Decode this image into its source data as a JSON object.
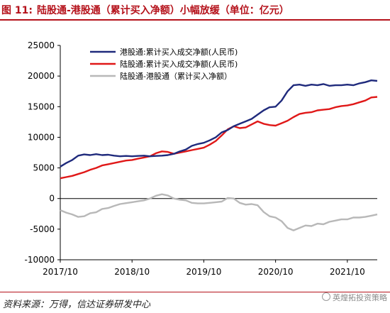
{
  "header": {
    "figure_tag": "图 11:",
    "title": "陆股通-港股通（累计买入净额）小幅放缓（单位：亿元）"
  },
  "footer": {
    "source": "资料来源：万得，信达证券研发中心",
    "watermark": "英煌拓投资策略"
  },
  "chart_data": {
    "type": "line",
    "ylim": [
      -10000,
      25000
    ],
    "yticks": [
      25000,
      20000,
      15000,
      10000,
      5000,
      0,
      -5000,
      -10000
    ],
    "xlim": [
      "2017-10",
      "2022-03"
    ],
    "xticks": [
      "2017/10",
      "2018/10",
      "2019/10",
      "2020/10",
      "2021/10"
    ],
    "grid": false,
    "legend_position": "top-left",
    "colors": {
      "southbound": "#1f2a7c",
      "northbound": "#e01818",
      "net": "#b8b8b8"
    },
    "series": [
      {
        "name": "港股通:累计买入成交净额(人民币)",
        "key": "southbound",
        "points": [
          [
            "2017-10",
            5200
          ],
          [
            "2017-11",
            5800
          ],
          [
            "2017-12",
            6300
          ],
          [
            "2018-01",
            7000
          ],
          [
            "2018-02",
            7200
          ],
          [
            "2018-03",
            7100
          ],
          [
            "2018-04",
            7250
          ],
          [
            "2018-05",
            7100
          ],
          [
            "2018-06",
            7150
          ],
          [
            "2018-07",
            7000
          ],
          [
            "2018-08",
            6900
          ],
          [
            "2018-09",
            6950
          ],
          [
            "2018-10",
            6900
          ],
          [
            "2018-11",
            6950
          ],
          [
            "2018-12",
            7000
          ],
          [
            "2019-01",
            6900
          ],
          [
            "2019-02",
            6950
          ],
          [
            "2019-03",
            7000
          ],
          [
            "2019-04",
            7100
          ],
          [
            "2019-05",
            7300
          ],
          [
            "2019-06",
            7700
          ],
          [
            "2019-07",
            8000
          ],
          [
            "2019-08",
            8600
          ],
          [
            "2019-09",
            8900
          ],
          [
            "2019-10",
            9100
          ],
          [
            "2019-11",
            9500
          ],
          [
            "2019-12",
            10000
          ],
          [
            "2020-01",
            10800
          ],
          [
            "2020-02",
            11200
          ],
          [
            "2020-03",
            11800
          ],
          [
            "2020-04",
            12200
          ],
          [
            "2020-05",
            12600
          ],
          [
            "2020-06",
            13000
          ],
          [
            "2020-07",
            13700
          ],
          [
            "2020-08",
            14400
          ],
          [
            "2020-09",
            14900
          ],
          [
            "2020-10",
            15000
          ],
          [
            "2020-11",
            16000
          ],
          [
            "2020-12",
            17500
          ],
          [
            "2021-01",
            18500
          ],
          [
            "2021-02",
            18600
          ],
          [
            "2021-03",
            18400
          ],
          [
            "2021-04",
            18600
          ],
          [
            "2021-05",
            18500
          ],
          [
            "2021-06",
            18700
          ],
          [
            "2021-07",
            18400
          ],
          [
            "2021-08",
            18500
          ],
          [
            "2021-09",
            18500
          ],
          [
            "2021-10",
            18600
          ],
          [
            "2021-11",
            18500
          ],
          [
            "2021-12",
            18800
          ],
          [
            "2022-01",
            19000
          ],
          [
            "2022-02",
            19300
          ],
          [
            "2022-03",
            19200
          ]
        ]
      },
      {
        "name": "陆股通:累计买入成交净额(人民币)",
        "key": "northbound",
        "points": [
          [
            "2017-10",
            3300
          ],
          [
            "2017-11",
            3500
          ],
          [
            "2017-12",
            3700
          ],
          [
            "2018-01",
            4000
          ],
          [
            "2018-02",
            4300
          ],
          [
            "2018-03",
            4700
          ],
          [
            "2018-04",
            5000
          ],
          [
            "2018-05",
            5400
          ],
          [
            "2018-06",
            5600
          ],
          [
            "2018-07",
            5800
          ],
          [
            "2018-08",
            6000
          ],
          [
            "2018-09",
            6200
          ],
          [
            "2018-10",
            6300
          ],
          [
            "2018-11",
            6500
          ],
          [
            "2018-12",
            6700
          ],
          [
            "2019-01",
            6900
          ],
          [
            "2019-02",
            7400
          ],
          [
            "2019-03",
            7700
          ],
          [
            "2019-04",
            7600
          ],
          [
            "2019-05",
            7300
          ],
          [
            "2019-06",
            7500
          ],
          [
            "2019-07",
            7700
          ],
          [
            "2019-08",
            7900
          ],
          [
            "2019-09",
            8100
          ],
          [
            "2019-10",
            8300
          ],
          [
            "2019-11",
            8800
          ],
          [
            "2019-12",
            9400
          ],
          [
            "2020-01",
            10300
          ],
          [
            "2020-02",
            11300
          ],
          [
            "2020-03",
            11800
          ],
          [
            "2020-04",
            11500
          ],
          [
            "2020-05",
            11600
          ],
          [
            "2020-06",
            12100
          ],
          [
            "2020-07",
            12600
          ],
          [
            "2020-08",
            12200
          ],
          [
            "2020-09",
            12000
          ],
          [
            "2020-10",
            11900
          ],
          [
            "2020-11",
            12300
          ],
          [
            "2020-12",
            12700
          ],
          [
            "2021-01",
            13300
          ],
          [
            "2021-02",
            13800
          ],
          [
            "2021-03",
            14000
          ],
          [
            "2021-04",
            14100
          ],
          [
            "2021-05",
            14400
          ],
          [
            "2021-06",
            14500
          ],
          [
            "2021-07",
            14600
          ],
          [
            "2021-08",
            14900
          ],
          [
            "2021-09",
            15100
          ],
          [
            "2021-10",
            15200
          ],
          [
            "2021-11",
            15400
          ],
          [
            "2021-12",
            15700
          ],
          [
            "2022-01",
            16000
          ],
          [
            "2022-02",
            16500
          ],
          [
            "2022-03",
            16600
          ]
        ]
      },
      {
        "name": "陆股通-港股通（累计买入净额）",
        "key": "net",
        "points": [
          [
            "2017-10",
            -1900
          ],
          [
            "2017-11",
            -2300
          ],
          [
            "2017-12",
            -2600
          ],
          [
            "2018-01",
            -3000
          ],
          [
            "2018-02",
            -2900
          ],
          [
            "2018-03",
            -2400
          ],
          [
            "2018-04",
            -2250
          ],
          [
            "2018-05",
            -1700
          ],
          [
            "2018-06",
            -1550
          ],
          [
            "2018-07",
            -1200
          ],
          [
            "2018-08",
            -900
          ],
          [
            "2018-09",
            -750
          ],
          [
            "2018-10",
            -600
          ],
          [
            "2018-11",
            -450
          ],
          [
            "2018-12",
            -300
          ],
          [
            "2019-01",
            0
          ],
          [
            "2019-02",
            450
          ],
          [
            "2019-03",
            700
          ],
          [
            "2019-04",
            500
          ],
          [
            "2019-05",
            0
          ],
          [
            "2019-06",
            -200
          ],
          [
            "2019-07",
            -300
          ],
          [
            "2019-08",
            -700
          ],
          [
            "2019-09",
            -800
          ],
          [
            "2019-10",
            -800
          ],
          [
            "2019-11",
            -700
          ],
          [
            "2019-12",
            -600
          ],
          [
            "2020-01",
            -500
          ],
          [
            "2020-02",
            100
          ],
          [
            "2020-03",
            0
          ],
          [
            "2020-04",
            -700
          ],
          [
            "2020-05",
            -1000
          ],
          [
            "2020-06",
            -900
          ],
          [
            "2020-07",
            -1100
          ],
          [
            "2020-08",
            -2200
          ],
          [
            "2020-09",
            -2900
          ],
          [
            "2020-10",
            -3100
          ],
          [
            "2020-11",
            -3700
          ],
          [
            "2020-12",
            -4800
          ],
          [
            "2021-01",
            -5200
          ],
          [
            "2021-02",
            -4800
          ],
          [
            "2021-03",
            -4400
          ],
          [
            "2021-04",
            -4500
          ],
          [
            "2021-05",
            -4100
          ],
          [
            "2021-06",
            -4200
          ],
          [
            "2021-07",
            -3800
          ],
          [
            "2021-08",
            -3600
          ],
          [
            "2021-09",
            -3400
          ],
          [
            "2021-10",
            -3400
          ],
          [
            "2021-11",
            -3100
          ],
          [
            "2021-12",
            -3100
          ],
          [
            "2022-01",
            -3000
          ],
          [
            "2022-02",
            -2800
          ],
          [
            "2022-03",
            -2600
          ]
        ]
      }
    ]
  }
}
